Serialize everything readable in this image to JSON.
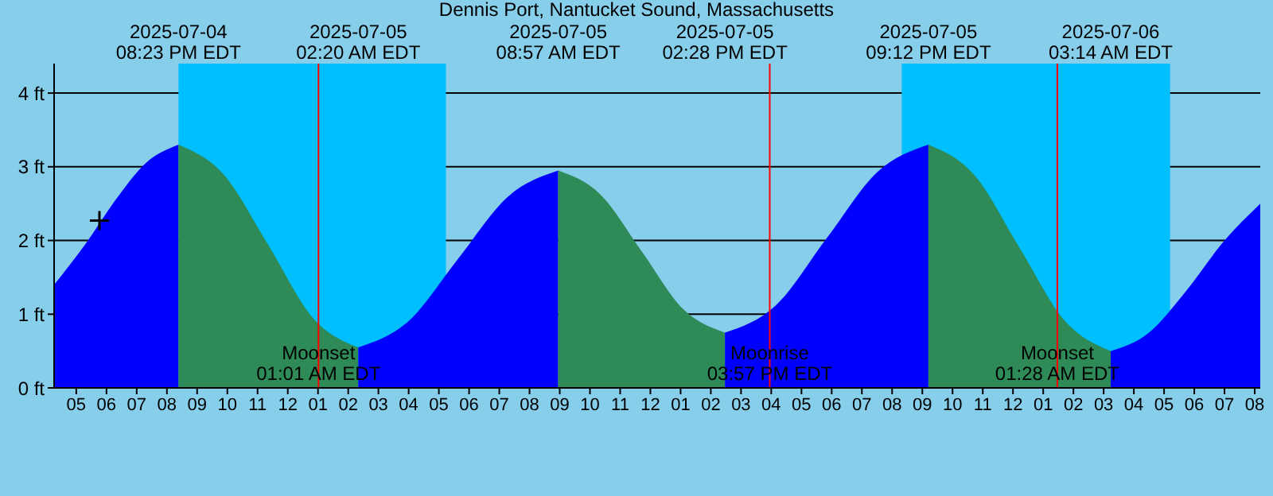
{
  "chart_data": {
    "type": "area",
    "title": "Dennis Port, Nantucket Sound, Massachusetts",
    "series": [
      {
        "color": "#0000ff",
        "x": [
          "2025-07-04T16:16",
          "2025-07-04T17:18",
          "2025-07-04T18:18",
          "2025-07-04T19:18",
          "2025-07-04T20:23"
        ],
        "values": [
          1.4,
          1.95,
          2.55,
          3.05,
          3.3
        ]
      },
      {
        "color": "#2e8b57",
        "x": [
          "2025-07-04T20:23",
          "2025-07-04T21:52",
          "2025-07-04T23:22",
          "2025-07-05T00:50",
          "2025-07-05T02:20"
        ],
        "values": [
          3.3,
          2.9,
          1.93,
          0.95,
          0.55
        ]
      },
      {
        "color": "#0000ff",
        "x": [
          "2025-07-05T02:20",
          "2025-07-05T03:59",
          "2025-07-05T05:38",
          "2025-07-05T07:18",
          "2025-07-05T08:57"
        ],
        "values": [
          0.55,
          0.9,
          1.75,
          2.6,
          2.95
        ]
      },
      {
        "color": "#2e8b57",
        "x": [
          "2025-07-05T08:57",
          "2025-07-05T10:20",
          "2025-07-05T11:43",
          "2025-07-05T13:05",
          "2025-07-05T14:28"
        ],
        "values": [
          2.95,
          2.63,
          1.85,
          1.07,
          0.75
        ]
      },
      {
        "color": "#0000ff",
        "x": [
          "2025-07-05T14:28",
          "2025-07-05T16:09",
          "2025-07-05T17:50",
          "2025-07-05T19:31",
          "2025-07-05T21:12"
        ],
        "values": [
          0.75,
          1.12,
          2.03,
          2.93,
          3.3
        ]
      },
      {
        "color": "#2e8b57",
        "x": [
          "2025-07-05T21:12",
          "2025-07-05T22:43",
          "2025-07-06T00:13",
          "2025-07-06T01:43",
          "2025-07-06T03:14"
        ],
        "values": [
          3.3,
          2.89,
          1.9,
          0.91,
          0.5
        ]
      },
      {
        "color": "#0000ff",
        "x": [
          "2025-07-06T03:14",
          "2025-07-06T04:30",
          "2025-07-06T05:42",
          "2025-07-06T07:00",
          "2025-07-06T08:11"
        ],
        "values": [
          0.5,
          0.75,
          1.3,
          2.0,
          2.5
        ]
      },
      {
        "type": "scatter",
        "color": "#000000",
        "marker": "cross",
        "x": [
          "2025-07-04T17:46"
        ],
        "values": [
          2.27
        ]
      }
    ],
    "xlim": [
      "2025-07-04T16:16",
      "2025-07-06T08:11"
    ],
    "ylim": [
      0,
      4.4
    ],
    "yticks": [
      {
        "value": 0,
        "label": "0 ft"
      },
      {
        "value": 1,
        "label": "1 ft"
      },
      {
        "value": 2,
        "label": "2 ft"
      },
      {
        "value": 3,
        "label": "3 ft"
      },
      {
        "value": 4,
        "label": "4 ft"
      }
    ],
    "xticks": [
      {
        "value": "2025-07-04T17:00",
        "label": "05"
      },
      {
        "value": "2025-07-04T18:00",
        "label": "06"
      },
      {
        "value": "2025-07-04T19:00",
        "label": "07"
      },
      {
        "value": "2025-07-04T20:00",
        "label": "08"
      },
      {
        "value": "2025-07-04T21:00",
        "label": "09"
      },
      {
        "value": "2025-07-04T22:00",
        "label": "10"
      },
      {
        "value": "2025-07-04T23:00",
        "label": "11"
      },
      {
        "value": "2025-07-05T00:00",
        "label": "12"
      },
      {
        "value": "2025-07-05T01:00",
        "label": "01"
      },
      {
        "value": "2025-07-05T02:00",
        "label": "02"
      },
      {
        "value": "2025-07-05T03:00",
        "label": "03"
      },
      {
        "value": "2025-07-05T04:00",
        "label": "04"
      },
      {
        "value": "2025-07-05T05:00",
        "label": "05"
      },
      {
        "value": "2025-07-05T06:00",
        "label": "06"
      },
      {
        "value": "2025-07-05T07:00",
        "label": "07"
      },
      {
        "value": "2025-07-05T08:00",
        "label": "08"
      },
      {
        "value": "2025-07-05T09:00",
        "label": "09"
      },
      {
        "value": "2025-07-05T10:00",
        "label": "10"
      },
      {
        "value": "2025-07-05T11:00",
        "label": "11"
      },
      {
        "value": "2025-07-05T12:00",
        "label": "12"
      },
      {
        "value": "2025-07-05T13:00",
        "label": "01"
      },
      {
        "value": "2025-07-05T14:00",
        "label": "02"
      },
      {
        "value": "2025-07-05T15:00",
        "label": "03"
      },
      {
        "value": "2025-07-05T16:00",
        "label": "04"
      },
      {
        "value": "2025-07-05T17:00",
        "label": "05"
      },
      {
        "value": "2025-07-05T18:00",
        "label": "06"
      },
      {
        "value": "2025-07-05T19:00",
        "label": "07"
      },
      {
        "value": "2025-07-05T20:00",
        "label": "08"
      },
      {
        "value": "2025-07-05T21:00",
        "label": "09"
      },
      {
        "value": "2025-07-05T22:00",
        "label": "10"
      },
      {
        "value": "2025-07-05T23:00",
        "label": "11"
      },
      {
        "value": "2025-07-06T00:00",
        "label": "12"
      },
      {
        "value": "2025-07-06T01:00",
        "label": "01"
      },
      {
        "value": "2025-07-06T02:00",
        "label": "02"
      },
      {
        "value": "2025-07-06T03:00",
        "label": "03"
      },
      {
        "value": "2025-07-06T04:00",
        "label": "04"
      },
      {
        "value": "2025-07-06T05:00",
        "label": "05"
      },
      {
        "value": "2025-07-06T06:00",
        "label": "06"
      },
      {
        "value": "2025-07-06T07:00",
        "label": "07"
      },
      {
        "value": "2025-07-06T08:00",
        "label": "08"
      }
    ],
    "bands": [
      {
        "axis": "x",
        "from": "2025-07-04T20:23",
        "to": "2025-07-05T05:14",
        "color": "#00bfff"
      },
      {
        "axis": "x",
        "from": "2025-07-05T20:19",
        "to": "2025-07-06T05:12",
        "color": "#00bfff"
      }
    ],
    "ref_lines": [
      {
        "axis": "x",
        "value": "2025-07-05T01:01",
        "label": "Moonset\n01:01 AM EDT",
        "color": "#ff0000"
      },
      {
        "axis": "x",
        "value": "2025-07-05T15:57",
        "label": "Moonrise\n03:57 PM EDT",
        "color": "#ff0000"
      },
      {
        "axis": "x",
        "value": "2025-07-06T01:28",
        "label": "Moonset\n01:28 AM EDT",
        "color": "#ff0000"
      }
    ],
    "annotations": [
      "2025-07-04\n08:23 PM EDT",
      "2025-07-05\n02:20 AM EDT",
      "2025-07-05\n08:57 AM EDT",
      "2025-07-05\n02:28 PM EDT",
      "2025-07-05\n09:12 PM EDT",
      "2025-07-06\n03:14 AM EDT"
    ],
    "grid": "y"
  }
}
